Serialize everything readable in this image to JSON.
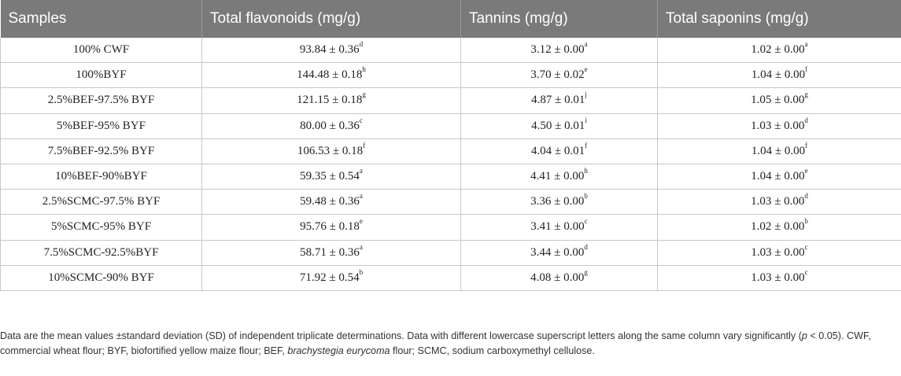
{
  "table": {
    "headers": [
      "Samples",
      "Total flavonoids (mg/g)",
      "Tannins (mg/g)",
      "Total saponins (mg/g)"
    ],
    "rows": [
      {
        "sample": "100% CWF",
        "flav": "93.84 ± 0.36",
        "flav_sup": "d",
        "tan": "3.12 ± 0.00",
        "tan_sup": "a",
        "sap": "1.02 ± 0.00",
        "sap_sup": "a"
      },
      {
        "sample": "100%BYF",
        "flav": "144.48 ± 0.18",
        "flav_sup": "h",
        "tan": "3.70 ± 0.02",
        "tan_sup": "e",
        "sap": "1.04 ± 0.00",
        "sap_sup": "f"
      },
      {
        "sample": "2.5%BEF-97.5% BYF",
        "flav": "121.15 ± 0.18",
        "flav_sup": "g",
        "tan": "4.87 ± 0.01",
        "tan_sup": "j",
        "sap": "1.05 ± 0.00",
        "sap_sup": "g"
      },
      {
        "sample": "5%BEF-95% BYF",
        "flav": "80.00 ± 0.36",
        "flav_sup": "c",
        "tan": "4.50 ± 0.01",
        "tan_sup": "i",
        "sap": "1.03 ± 0.00",
        "sap_sup": "d"
      },
      {
        "sample": "7.5%BEF-92.5% BYF",
        "flav": "106.53 ± 0.18",
        "flav_sup": "f",
        "tan": "4.04 ± 0.01",
        "tan_sup": "f",
        "sap": "1.04 ± 0.00",
        "sap_sup": "f"
      },
      {
        "sample": "10%BEF-90%BYF",
        "flav": "59.35 ± 0.54",
        "flav_sup": "a",
        "tan": "4.41 ± 0.00",
        "tan_sup": "h",
        "sap": "1.04 ± 0.00",
        "sap_sup": "e"
      },
      {
        "sample": "2.5%SCMC-97.5% BYF",
        "flav": "59.48 ± 0.36",
        "flav_sup": "a",
        "tan": "3.36 ± 0.00",
        "tan_sup": "b",
        "sap": "1.03 ± 0.00",
        "sap_sup": "d"
      },
      {
        "sample": "5%SCMC-95% BYF",
        "flav": "95.76 ± 0.18",
        "flav_sup": "e",
        "tan": "3.41 ± 0.00",
        "tan_sup": "c",
        "sap": "1.02 ± 0.00",
        "sap_sup": "b"
      },
      {
        "sample": "7.5%SCMC-92.5%BYF",
        "flav": "58.71 ± 0.36",
        "flav_sup": "a",
        "tan": "3.44 ± 0.00",
        "tan_sup": "d",
        "sap": "1.03 ± 0.00",
        "sap_sup": "c"
      },
      {
        "sample": "10%SCMC-90% BYF",
        "flav": "71.92 ± 0.54",
        "flav_sup": "b",
        "tan": "4.08 ± 0.00",
        "tan_sup": "g",
        "sap": "1.03 ± 0.00",
        "sap_sup": "c"
      }
    ]
  },
  "footnote": {
    "part1": "Data are the mean values ±standard deviation (SD) of independent triplicate determinations. Data with different lowercase superscript letters along the same column vary significantly (",
    "p": "p",
    "part2": " < 0.05). CWF, commercial wheat flour; BYF, biofortified yellow maize flour; BEF, ",
    "species": "brachystegia eurycoma",
    "part3": " flour; SCMC, sodium carboxymethyl cellulose."
  }
}
